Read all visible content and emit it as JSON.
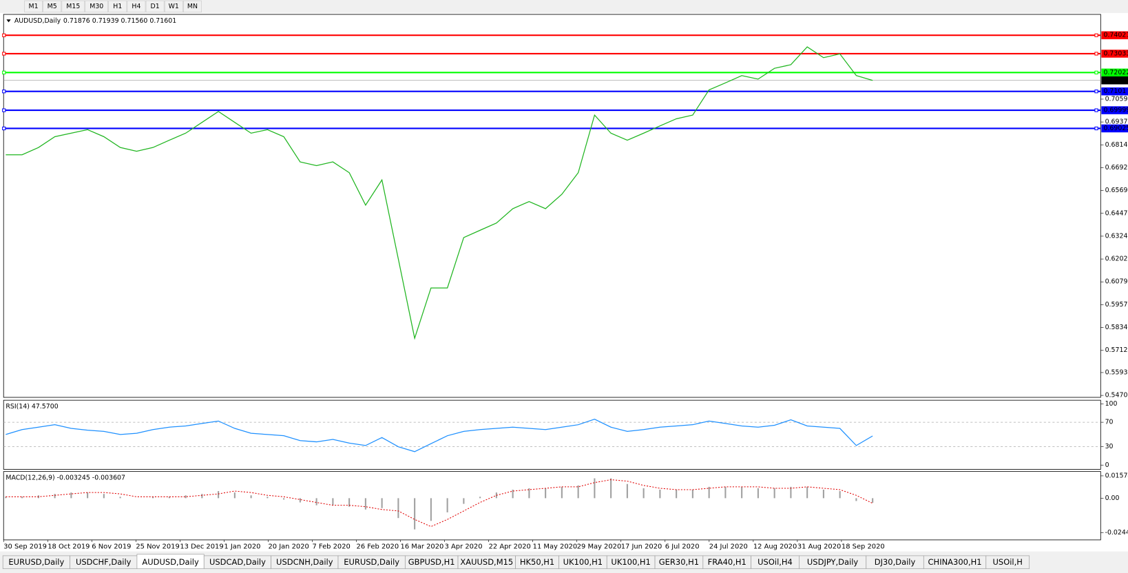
{
  "toolbar": {
    "timeframes": [
      "M1",
      "M5",
      "M15",
      "M30",
      "H1",
      "H4",
      "D1",
      "W1",
      "MN"
    ]
  },
  "chart_data": [
    {
      "type": "line",
      "title": "AUDUSD,Daily",
      "quote": "0.71876 0.71939 0.71560 0.71601",
      "color": "#1fb51f",
      "values": [
        0.6761,
        0.6761,
        0.68,
        0.6858,
        0.6877,
        0.6896,
        0.6858,
        0.68,
        0.678,
        0.68,
        0.6839,
        0.6877,
        0.6935,
        0.6993,
        0.6935,
        0.6877,
        0.6896,
        0.6858,
        0.6723,
        0.6703,
        0.6723,
        0.6665,
        0.6491,
        0.6626,
        0.6202,
        0.5777,
        0.6047,
        0.6047,
        0.6317,
        0.6356,
        0.6395,
        0.6472,
        0.651,
        0.6472,
        0.6549,
        0.6665,
        0.6974,
        0.6877,
        0.6839,
        0.6877,
        0.6916,
        0.6954,
        0.6974,
        0.7109,
        0.7147,
        0.7186,
        0.7167,
        0.7225,
        0.7244,
        0.734,
        0.7282,
        0.7302,
        0.7186,
        0.71601
      ],
      "ylim": [
        0.546,
        0.7514
      ],
      "yticks": [
        0.70595,
        {
          "value": 0.6937,
          "label": "0.69370"
        },
        0.68145,
        {
          "value": 0.6692,
          "label": "0.66920"
        },
        0.65695,
        {
          "value": 0.6447,
          "label": "0.64470"
        },
        0.63245,
        {
          "value": 0.6202,
          "label": "0.62020"
        },
        0.60795,
        {
          "value": 0.5957,
          "label": "0.59570"
        },
        0.58345,
        {
          "value": 0.5712,
          "label": "0.57120"
        },
        {
          "value": 0.5593,
          "label": "0.55930"
        },
        0.54705
      ],
      "levels": [
        {
          "value": 0.74021,
          "color": "#ff0000"
        },
        {
          "value": 0.73033,
          "color": "#ff0000"
        },
        {
          "value": 0.72022,
          "color": "#00ff00"
        },
        {
          "value": 0.7101,
          "color": "#0000ff"
        },
        {
          "value": 0.69999,
          "color": "#0000ff"
        },
        {
          "value": 0.69025,
          "color": "#0000ff"
        }
      ],
      "last": 0.71601,
      "x_labels": [
        "30 Sep 2019",
        "18 Oct 2019",
        "6 Nov 2019",
        "25 Nov 2019",
        "13 Dec 2019",
        "1 Jan 2020",
        "20 Jan 2020",
        "7 Feb 2020",
        "26 Feb 2020",
        "16 Mar 2020",
        "3 Apr 2020",
        "22 Apr 2020",
        "11 May 2020",
        "29 May 2020",
        "17 Jun 2020",
        "6 Jul 2020",
        "24 Jul 2020",
        "12 Aug 2020",
        "31 Aug 2020",
        "18 Sep 2020"
      ]
    },
    {
      "type": "line",
      "title": "RSI(14) 47.5700",
      "color": "#1e90ff",
      "values": [
        50,
        58,
        62,
        66,
        60,
        57,
        55,
        50,
        52,
        58,
        62,
        64,
        68,
        72,
        60,
        52,
        50,
        48,
        40,
        38,
        42,
        36,
        32,
        45,
        30,
        22,
        35,
        48,
        55,
        58,
        60,
        62,
        60,
        58,
        62,
        66,
        75,
        62,
        55,
        58,
        62,
        64,
        66,
        72,
        68,
        64,
        62,
        65,
        74,
        64,
        62,
        60,
        32,
        47.57
      ],
      "ylim": [
        -7,
        106
      ],
      "yticks": [
        100,
        70,
        30,
        0
      ],
      "levels": [
        70,
        30
      ]
    },
    {
      "type": "macd",
      "title": "MACD(12,26,9) -0.003245 -0.003607",
      "color": "#a0a0a0",
      "signal_color": "#e00000",
      "histogram": [
        0.001,
        0.001,
        0.002,
        0.003,
        0.004,
        0.004,
        0.003,
        0.001,
        0,
        0.001,
        0.001,
        0.002,
        0.003,
        0.005,
        0.004,
        0.002,
        0.001,
        -0.001,
        -0.003,
        -0.005,
        -0.005,
        -0.006,
        -0.008,
        -0.007,
        -0.014,
        -0.022,
        -0.016,
        -0.01,
        -0.004,
        0.001,
        0.004,
        0.006,
        0.007,
        0.007,
        0.008,
        0.009,
        0.014,
        0.014,
        0.01,
        0.007,
        0.006,
        0.006,
        0.006,
        0.008,
        0.008,
        0.008,
        0.007,
        0.007,
        0.008,
        0.008,
        0.006,
        0.005,
        -0.002,
        -0.003245
      ],
      "signal": [
        0.001,
        0.001,
        0.001,
        0.002,
        0.003,
        0.004,
        0.004,
        0.003,
        0.001,
        0.001,
        0.001,
        0.001,
        0.002,
        0.003,
        0.005,
        0.004,
        0.002,
        0.001,
        -0.001,
        -0.003,
        -0.005,
        -0.005,
        -0.006,
        -0.008,
        -0.009,
        -0.015,
        -0.02,
        -0.015,
        -0.009,
        -0.003,
        0.002,
        0.005,
        0.006,
        0.007,
        0.008,
        0.008,
        0.011,
        0.013,
        0.012,
        0.009,
        0.007,
        0.006,
        0.006,
        0.007,
        0.008,
        0.008,
        0.008,
        0.007,
        0.007,
        0.008,
        0.007,
        0.006,
        0.002,
        -0.003607
      ],
      "ylim": [
        -0.0294,
        0.0188
      ],
      "yticks": [
        0.015741,
        {
          "value": 0,
          "label": "0.00"
        },
        -0.02441
      ]
    }
  ],
  "tabs": [
    "EURUSD,Daily",
    "USDCHF,Daily",
    "AUDUSD,Daily",
    "USDCAD,Daily",
    "USDCNH,Daily",
    "EURUSD,Daily",
    "GBPUSD,H1",
    "XAUUSD,M15",
    "HK50,H1",
    "UK100,H1",
    "UK100,H1",
    "GER30,H1",
    "FRA40,H1",
    "USOil,H4",
    "USDJPY,Daily",
    "DJ30,Daily",
    "CHINA300,H1",
    "USOil,H"
  ],
  "active_tab": 2
}
